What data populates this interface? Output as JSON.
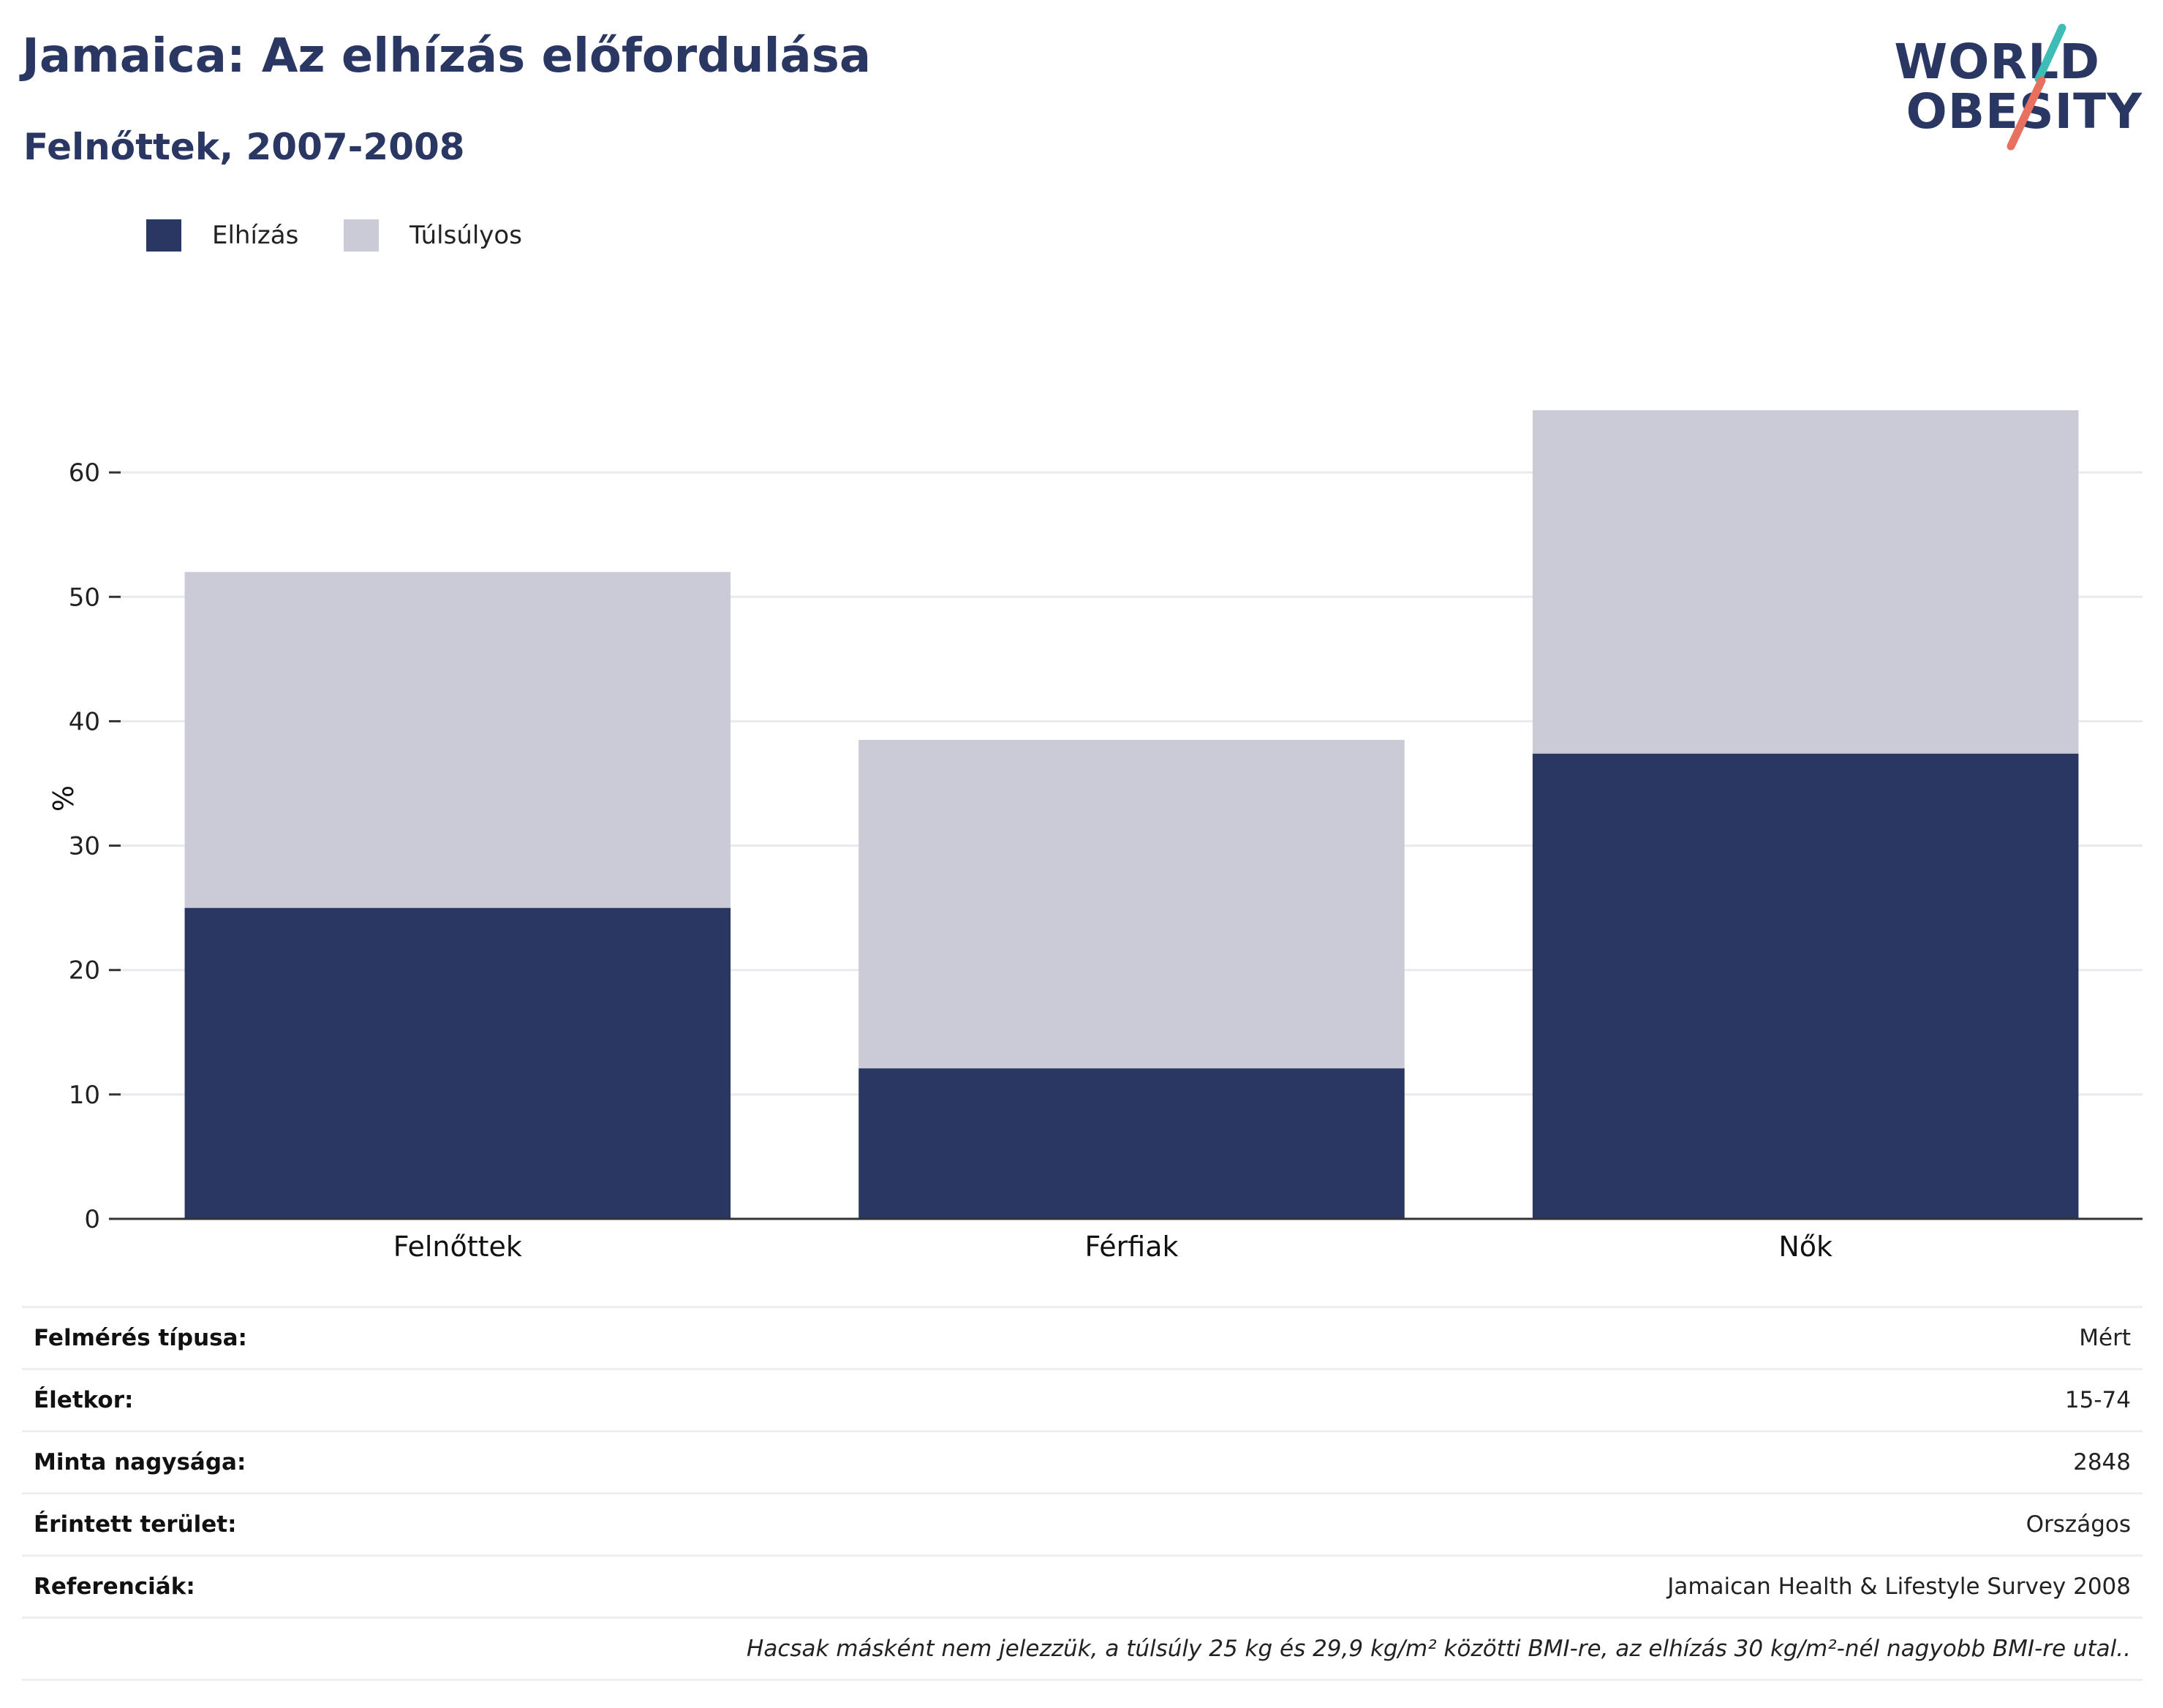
{
  "header": {
    "title": "Jamaica: Az elhízás előfordulása",
    "subtitle": "Felnőttek, 2007-2008"
  },
  "logo": {
    "line1": "WORLD",
    "line2": "OBESITY",
    "accent_teal": "#3dbdb5",
    "accent_coral": "#e8705f"
  },
  "legend": [
    {
      "label": "Elhízás",
      "color": "#2a3763"
    },
    {
      "label": "Túlsúlyos",
      "color": "#cacbd6"
    }
  ],
  "chart_data": {
    "type": "bar",
    "stacked": true,
    "categories": [
      "Felnőttek",
      "Férfiak",
      "Nők"
    ],
    "series": [
      {
        "name": "Elhízás",
        "color": "#2a3763",
        "values": [
          25.0,
          12.1,
          37.4
        ]
      },
      {
        "name": "Túlsúlyos",
        "color": "#cacbd6",
        "values": [
          27.0,
          26.4,
          27.6
        ]
      }
    ],
    "ylabel": "%",
    "ylim": [
      0,
      70
    ],
    "yticks": [
      0,
      10,
      20,
      30,
      40,
      50,
      60
    ],
    "grid": true,
    "legend_position": "top-left"
  },
  "info": [
    {
      "key": "Felmérés típusa:",
      "value": "Mért"
    },
    {
      "key": "Életkor:",
      "value": "15-74"
    },
    {
      "key": "Minta nagysága:",
      "value": "2848"
    },
    {
      "key": "Érintett terület:",
      "value": "Országos"
    },
    {
      "key": "Referenciák:",
      "value": "Jamaican Health & Lifestyle Survey 2008"
    }
  ],
  "note": "Hacsak másként nem jelezzük, a túlsúly 25 kg és 29,9 kg/m² közötti BMI-re, az elhízás 30 kg/m²-nél nagyobb BMI-re utal.."
}
